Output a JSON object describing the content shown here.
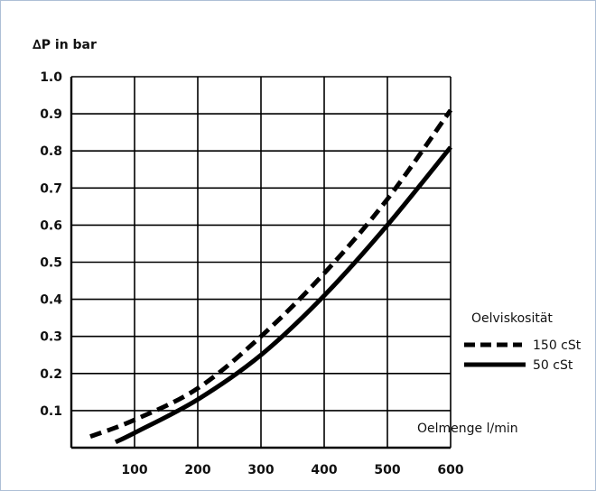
{
  "chart_data": {
    "type": "line",
    "ylabel": "∆P in bar",
    "xlabel": "Oelmenge l/min",
    "xlim": [
      0,
      600
    ],
    "ylim": [
      0,
      1.0
    ],
    "x_ticks": [
      "100",
      "200",
      "300",
      "400",
      "500",
      "600"
    ],
    "y_ticks": [
      "0.1",
      "0.2",
      "0.3",
      "0.4",
      "0.5",
      "0.6",
      "0.7",
      "0.8",
      "0.9",
      "1.0"
    ],
    "grid": true,
    "legend": {
      "title": "Oelviskosität",
      "placement": "right"
    },
    "series": [
      {
        "name": "150 cSt",
        "style": "dashed",
        "x": [
          30,
          100,
          200,
          300,
          400,
          500,
          600
        ],
        "y": [
          0.03,
          0.075,
          0.16,
          0.3,
          0.47,
          0.67,
          0.91
        ]
      },
      {
        "name": "50 cSt",
        "style": "solid",
        "x": [
          70,
          100,
          200,
          300,
          400,
          500,
          600
        ],
        "y": [
          0.015,
          0.04,
          0.13,
          0.25,
          0.41,
          0.6,
          0.81
        ]
      }
    ]
  },
  "colors": {
    "line": "#000000",
    "grid": "#000000",
    "frame": "#aebfd6"
  }
}
